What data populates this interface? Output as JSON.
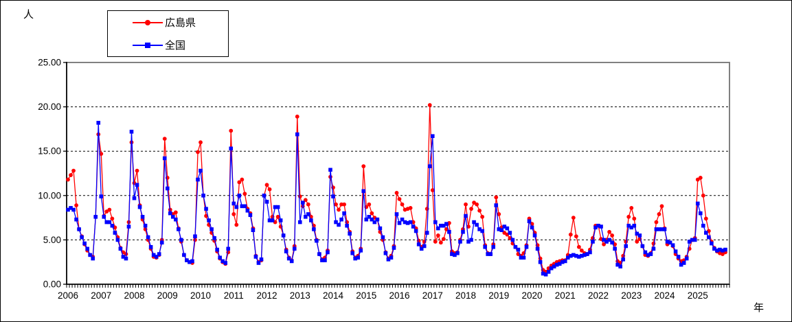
{
  "chart": {
    "y_axis_unit": "人",
    "x_axis_unit": "年",
    "y_tick_labels": [
      "0.00",
      "5.00",
      "10.00",
      "15.00",
      "20.00",
      "25.00"
    ],
    "x_tick_labels": [
      "2006",
      "2007",
      "2008",
      "2009",
      "2010",
      "2011",
      "2012",
      "2013",
      "2014",
      "2015",
      "2016",
      "2017",
      "2018",
      "2019",
      "2020",
      "2021",
      "2022",
      "2023",
      "2024",
      "2025"
    ]
  },
  "legend": {
    "items": [
      {
        "label": "広島県",
        "color": "#ff0000",
        "marker": "circle"
      },
      {
        "label": "全国",
        "color": "#0000ff",
        "marker": "square"
      }
    ]
  },
  "chart_data": {
    "type": "line",
    "title": "",
    "xlabel": "年",
    "ylabel": "人",
    "x_interval": "monthly",
    "x_start": "2006-01",
    "x_end": "2025-11",
    "ylim": [
      0,
      25
    ],
    "y_grid_interval": 5,
    "grid": {
      "horizontal_dashed": true
    },
    "legend_position": "top-left",
    "series": [
      {
        "name": "広島県",
        "color": "#ff0000",
        "marker": "circle",
        "values": [
          11.8,
          12.3,
          12.8,
          8.9,
          6.2,
          5.4,
          4.5,
          3.8,
          3.3,
          3.1,
          7.6,
          16.9,
          14.7,
          7.7,
          8.2,
          8.4,
          7.4,
          6.4,
          5.3,
          4.1,
          3.6,
          3.4,
          7.0,
          16.0,
          11.4,
          12.8,
          8.9,
          7.3,
          6.2,
          5.0,
          4.0,
          3.1,
          3.0,
          3.3,
          5.0,
          16.4,
          12.0,
          8.4,
          7.9,
          8.1,
          6.3,
          4.8,
          3.3,
          2.7,
          2.5,
          2.4,
          5.0,
          14.9,
          16.0,
          10.0,
          7.7,
          6.7,
          5.8,
          4.9,
          3.7,
          2.9,
          2.5,
          2.3,
          3.6,
          17.3,
          7.9,
          6.7,
          11.5,
          11.8,
          10.2,
          8.5,
          8.0,
          6.3,
          3.2,
          2.5,
          2.7,
          10.0,
          11.2,
          10.7,
          7.6,
          7.0,
          7.6,
          6.5,
          5.5,
          3.9,
          3.0,
          2.7,
          4.3,
          18.9,
          9.9,
          8.8,
          9.5,
          9.0,
          7.6,
          6.6,
          5.0,
          3.4,
          2.8,
          3.0,
          3.8,
          12.1,
          10.9,
          9.0,
          8.4,
          9.0,
          9.0,
          7.0,
          5.9,
          3.7,
          3.0,
          3.2,
          4.0,
          13.3,
          8.7,
          9.0,
          8.0,
          7.5,
          7.3,
          5.9,
          5.0,
          3.6,
          2.9,
          3.2,
          4.3,
          10.3,
          9.6,
          9.0,
          8.4,
          8.5,
          8.6,
          7.0,
          6.3,
          4.9,
          4.2,
          4.8,
          8.5,
          20.2,
          10.6,
          4.8,
          5.5,
          4.7,
          5.1,
          6.2,
          6.9,
          3.7,
          3.5,
          3.6,
          5.0,
          6.2,
          9.0,
          6.5,
          8.5,
          9.2,
          9.0,
          8.3,
          7.6,
          4.4,
          3.5,
          3.4,
          4.5,
          9.8,
          7.9,
          6.4,
          5.8,
          5.6,
          5.2,
          4.6,
          4.2,
          3.4,
          3.2,
          3.5,
          4.4,
          7.4,
          6.8,
          5.8,
          4.4,
          2.9,
          1.6,
          1.4,
          1.8,
          2.1,
          2.3,
          2.5,
          2.6,
          2.7,
          2.7,
          3.3,
          5.6,
          7.5,
          5.4,
          4.2,
          3.8,
          3.5,
          3.4,
          3.9,
          5.2,
          6.6,
          6.6,
          5.1,
          4.5,
          5.0,
          5.9,
          5.5,
          4.5,
          2.6,
          2.4,
          3.2,
          4.8,
          7.6,
          8.6,
          7.4,
          4.8,
          5.1,
          4.3,
          3.3,
          3.2,
          3.5,
          4.6,
          7.0,
          7.9,
          8.8,
          6.3,
          4.5,
          4.7,
          4.3,
          3.4,
          2.9,
          2.6,
          2.7,
          3.1,
          4.0,
          5.0,
          5.2,
          11.8,
          12.0,
          10.0,
          7.4,
          6.0,
          4.8,
          4.1,
          3.7,
          3.5,
          3.4,
          3.6
        ]
      },
      {
        "name": "全国",
        "color": "#0000ff",
        "marker": "square",
        "values": [
          8.4,
          8.6,
          8.4,
          7.3,
          6.2,
          5.3,
          4.6,
          4.0,
          3.3,
          2.9,
          7.6,
          18.2,
          9.9,
          7.6,
          7.0,
          7.0,
          6.6,
          5.8,
          5.0,
          4.0,
          3.1,
          2.9,
          6.5,
          17.2,
          9.7,
          11.2,
          8.7,
          7.6,
          6.6,
          5.3,
          4.2,
          3.3,
          3.1,
          3.4,
          4.7,
          14.2,
          10.8,
          8.0,
          7.6,
          7.3,
          6.2,
          5.0,
          3.3,
          2.7,
          2.5,
          2.6,
          5.4,
          11.8,
          12.8,
          10.0,
          8.5,
          7.2,
          6.2,
          5.2,
          3.9,
          3.0,
          2.6,
          2.4,
          4.0,
          15.3,
          9.1,
          8.7,
          10.0,
          8.8,
          8.8,
          8.3,
          7.8,
          6.1,
          3.1,
          2.4,
          2.8,
          10.0,
          9.3,
          7.2,
          7.2,
          8.7,
          8.7,
          7.2,
          5.5,
          3.7,
          2.9,
          2.6,
          4.0,
          16.9,
          7.0,
          9.2,
          7.6,
          7.9,
          7.2,
          6.2,
          4.9,
          3.4,
          2.7,
          2.7,
          3.6,
          12.9,
          9.9,
          7.0,
          6.7,
          7.3,
          8.0,
          6.6,
          5.7,
          3.5,
          2.9,
          3.0,
          3.8,
          10.5,
          7.3,
          7.6,
          7.3,
          7.0,
          7.3,
          6.3,
          5.3,
          3.5,
          2.8,
          3.0,
          4.1,
          7.9,
          6.9,
          7.3,
          7.0,
          6.9,
          7.0,
          6.5,
          6.0,
          4.5,
          4.0,
          4.3,
          5.8,
          13.3,
          16.7,
          7.0,
          6.3,
          6.6,
          6.6,
          6.8,
          5.9,
          3.4,
          3.3,
          3.5,
          4.8,
          5.9,
          7.7,
          4.8,
          5.0,
          7.0,
          6.7,
          6.2,
          6.0,
          4.2,
          3.4,
          3.4,
          4.2,
          8.9,
          6.2,
          6.1,
          6.5,
          6.3,
          5.8,
          5.0,
          4.2,
          3.9,
          3.0,
          3.0,
          4.2,
          7.1,
          6.4,
          5.5,
          4.0,
          2.5,
          1.2,
          1.1,
          1.4,
          1.8,
          2.0,
          2.2,
          2.3,
          2.5,
          2.6,
          3.0,
          3.2,
          3.3,
          3.2,
          3.1,
          3.2,
          3.3,
          3.4,
          3.6,
          4.8,
          6.4,
          6.6,
          6.5,
          5.0,
          4.8,
          5.0,
          4.7,
          4.0,
          2.2,
          2.0,
          2.8,
          4.3,
          6.6,
          6.4,
          6.6,
          5.7,
          5.5,
          4.3,
          3.6,
          3.3,
          3.4,
          4.0,
          6.2,
          6.2,
          6.2,
          6.2,
          4.8,
          4.7,
          4.4,
          3.7,
          3.1,
          2.2,
          2.4,
          2.9,
          4.8,
          5.0,
          5.0,
          9.1,
          8.0,
          6.6,
          5.8,
          5.3,
          4.6,
          4.0,
          3.8,
          3.9,
          3.8,
          3.9
        ]
      }
    ]
  }
}
